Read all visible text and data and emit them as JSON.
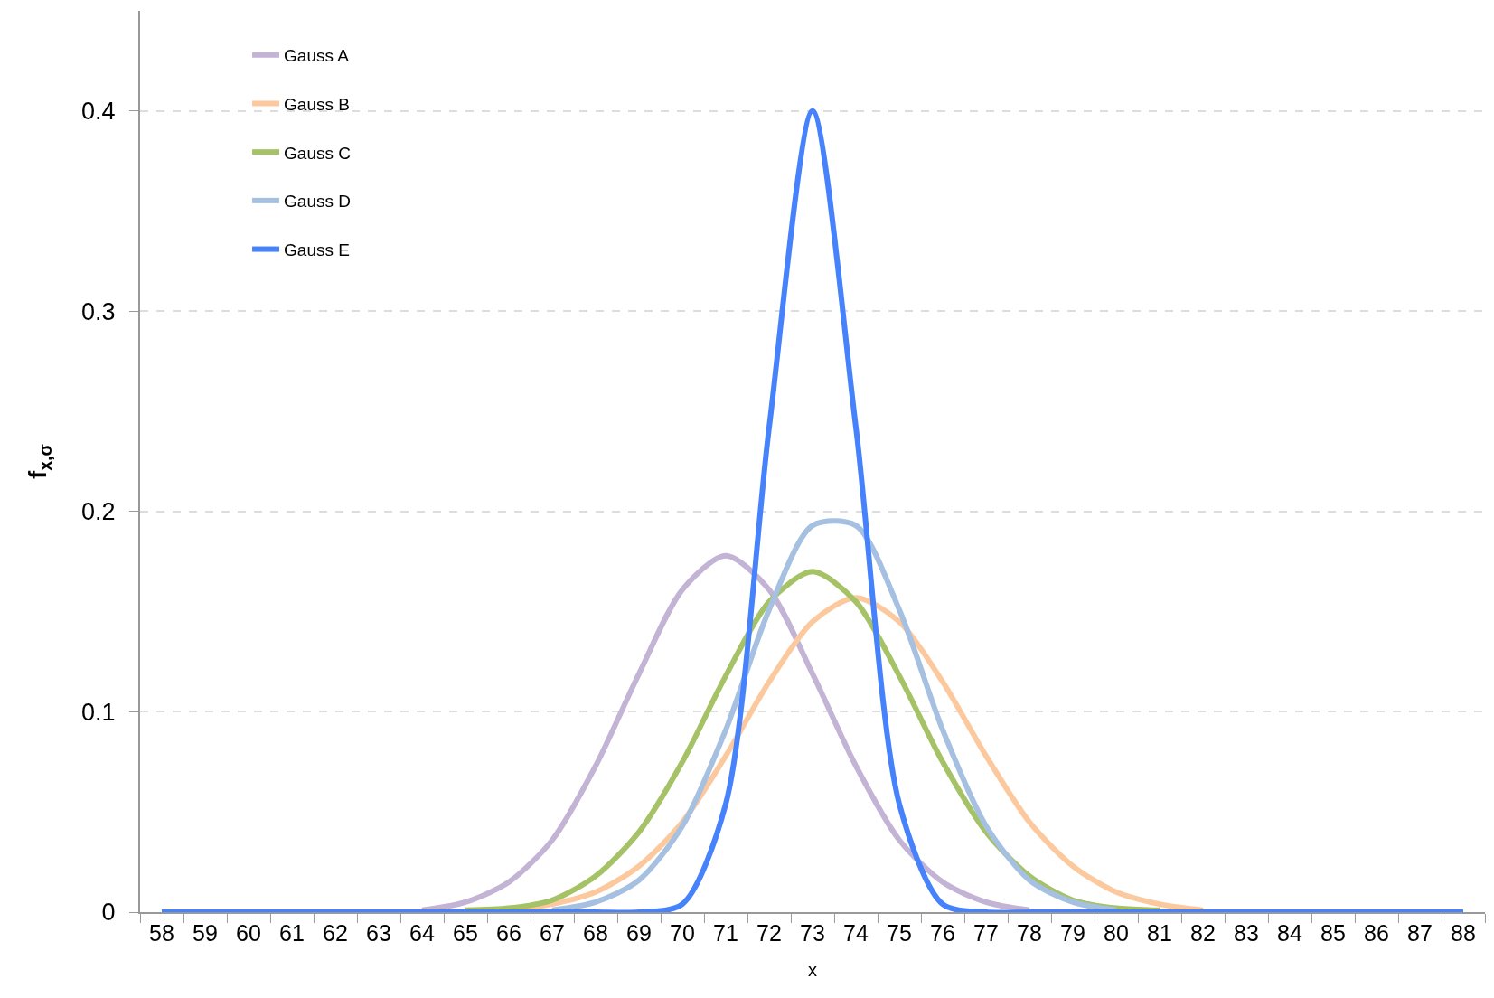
{
  "chart_data": {
    "type": "line",
    "xlabel": "x",
    "ylabel": "f$_{x,σ}$",
    "categories": [
      "58",
      "59",
      "60",
      "61",
      "62",
      "63",
      "64",
      "65",
      "66",
      "67",
      "68",
      "69",
      "70",
      "71",
      "72",
      "73",
      "74",
      "75",
      "76",
      "77",
      "78",
      "79",
      "80",
      "81",
      "82",
      "83",
      "84",
      "85",
      "86",
      "87",
      "88"
    ],
    "series": [
      {
        "name": "Gauss A",
        "color": "#c3b3d5",
        "values": [
          null,
          null,
          null,
          null,
          null,
          null,
          0.001,
          0.005,
          0.015,
          0.036,
          0.073,
          0.119,
          0.161,
          0.178,
          0.161,
          0.119,
          0.073,
          0.036,
          0.015,
          0.005,
          0.001,
          null,
          null,
          null,
          null,
          null,
          null,
          null,
          null,
          null,
          null
        ]
      },
      {
        "name": "Gauss B",
        "color": "#fcc99e",
        "values": [
          null,
          null,
          null,
          null,
          null,
          null,
          null,
          null,
          0.001,
          0.004,
          0.01,
          0.023,
          0.045,
          0.078,
          0.115,
          0.145,
          0.157,
          0.145,
          0.115,
          0.078,
          0.045,
          0.023,
          0.01,
          0.004,
          0.001,
          null,
          null,
          null,
          null,
          null,
          null
        ]
      },
      {
        "name": "Gauss C",
        "color": "#a6c266",
        "values": [
          null,
          null,
          null,
          null,
          null,
          null,
          null,
          0.001,
          0.002,
          0.006,
          0.018,
          0.04,
          0.075,
          0.118,
          0.155,
          0.17,
          0.155,
          0.118,
          0.075,
          0.04,
          0.018,
          0.006,
          0.002,
          0.001,
          null,
          null,
          null,
          null,
          null,
          null,
          null
        ]
      },
      {
        "name": "Gauss D",
        "color": "#a5c0e0",
        "values": [
          null,
          null,
          null,
          null,
          null,
          null,
          null,
          null,
          null,
          0.001,
          0.005,
          0.016,
          0.043,
          0.091,
          0.151,
          0.193,
          0.193,
          0.151,
          0.091,
          0.043,
          0.016,
          0.005,
          0.001,
          null,
          null,
          null,
          null,
          null,
          null,
          null,
          null
        ]
      },
      {
        "name": "Gauss E",
        "color": "#4682fb",
        "values": [
          0,
          0,
          0,
          0,
          0,
          0,
          0,
          0,
          0,
          0,
          0,
          0,
          0.004,
          0.054,
          0.242,
          0.4,
          0.242,
          0.054,
          0.004,
          0,
          0,
          0,
          0,
          0,
          0,
          0,
          0,
          0,
          0,
          0,
          0
        ]
      }
    ],
    "ylim": [
      0,
      0.45
    ],
    "yticks": [
      0,
      0.1,
      0.2,
      0.3,
      0.4
    ],
    "grid": "y",
    "legend": "top left",
    "marker": "none",
    "line_style": "solid"
  }
}
